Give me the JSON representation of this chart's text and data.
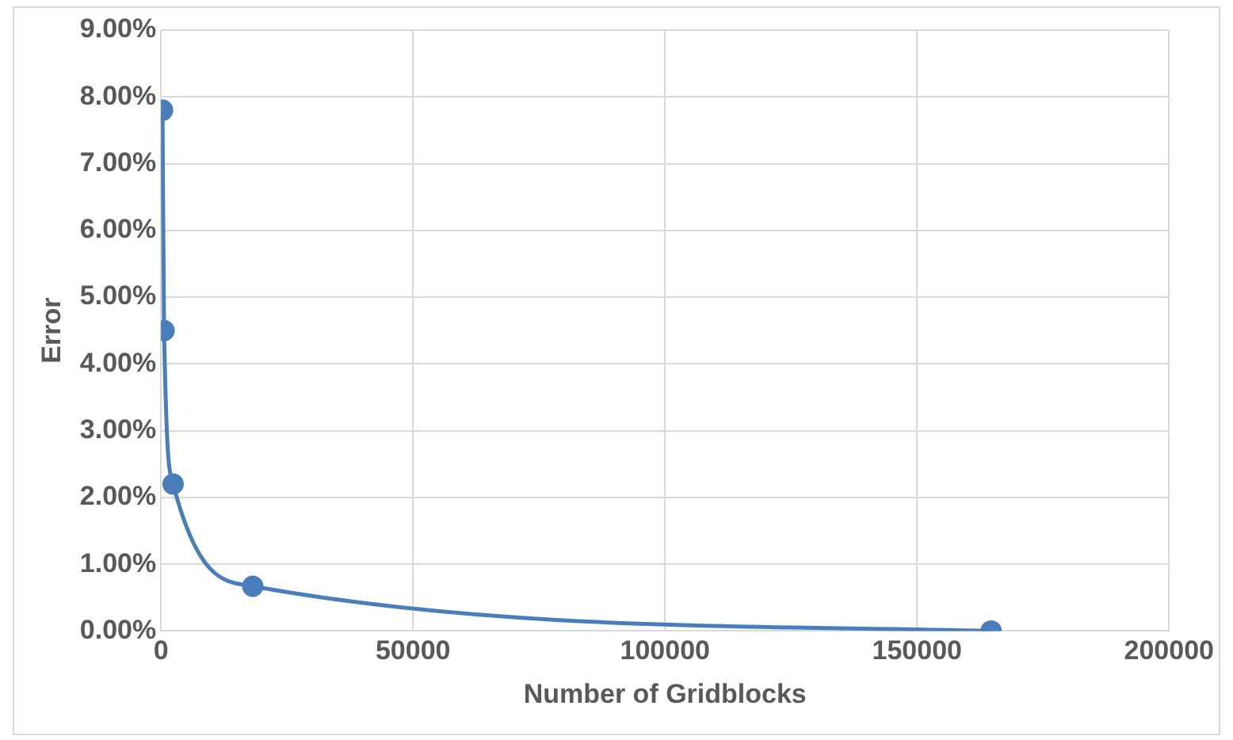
{
  "chart_data": {
    "type": "line",
    "xlabel": "Number of Gridblocks",
    "ylabel": "Error",
    "x": [
      300,
      600,
      2400,
      18200,
      164700
    ],
    "series": [
      {
        "color": "#4a7ebb",
        "values": [
          7.8,
          4.5,
          2.2,
          0.67,
          0
        ]
      }
    ],
    "xlim": [
      0,
      200000
    ],
    "xticks": [
      0,
      50000,
      100000,
      150000,
      200000
    ],
    "ylim": [
      0,
      9
    ],
    "yticks": [
      {
        "value": 0,
        "label": "0.00%"
      },
      {
        "value": 1,
        "label": "1.00%"
      },
      {
        "value": 2,
        "label": "2.00%"
      },
      {
        "value": 3,
        "label": "3.00%"
      },
      {
        "value": 4,
        "label": "4.00%"
      },
      {
        "value": 5,
        "label": "5.00%"
      },
      {
        "value": 6,
        "label": "6.00%"
      },
      {
        "value": 7,
        "label": "7.00%"
      },
      {
        "value": 8,
        "label": "8.00%"
      },
      {
        "value": 9,
        "label": "9.00%"
      }
    ],
    "grid": true,
    "marker": "circle",
    "line_style": "solid",
    "legend": false
  }
}
